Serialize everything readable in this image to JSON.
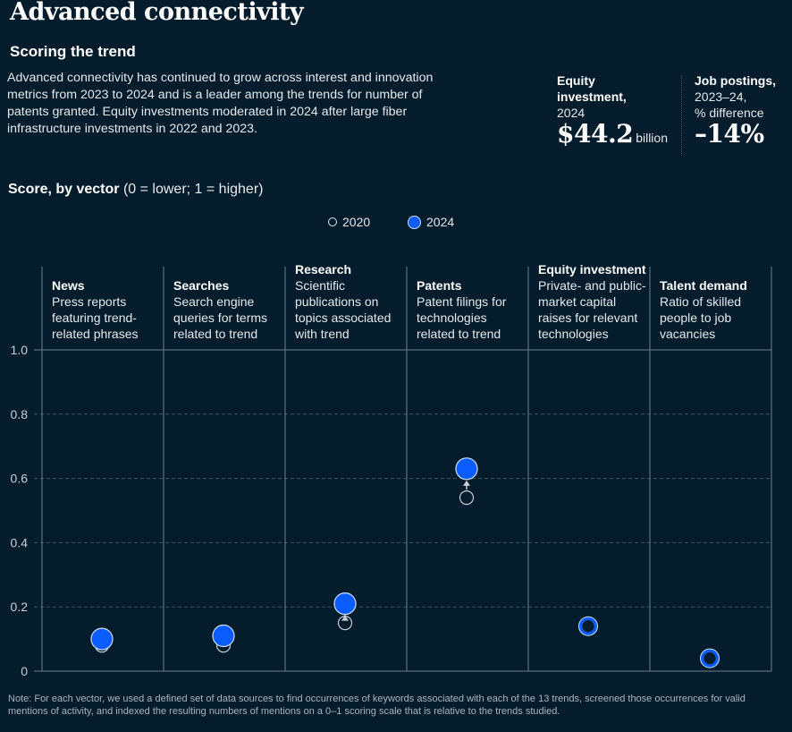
{
  "header": {
    "title": "Advanced connectivity",
    "subtitle": "Scoring the trend",
    "description": "Advanced connectivity has continued to grow across interest and innovation metrics from 2023 to 2024 and is a leader among the trends for number of patents granted. Equity investments moderated in 2024 after large fiber infrastructure investments in 2022 and 2023."
  },
  "kpis": {
    "equity": {
      "label_bold_1": "Equity",
      "label_bold_2": "investment,",
      "label_sub": "2024",
      "value": "$44.2",
      "unit": "billion"
    },
    "jobs": {
      "label_bold": "Job postings,",
      "label_sub_1": "2023–24,",
      "label_sub_2": "% difference",
      "value": "–14%"
    }
  },
  "score_title": {
    "bold": "Score, by vector",
    "light": " (0 = lower; 1 = higher)"
  },
  "legend": {
    "items": [
      {
        "label": "2020",
        "style": "hollow-circle"
      },
      {
        "label": "2024",
        "style": "filled-blue-circle"
      }
    ]
  },
  "colors": {
    "background": "#051c2c",
    "accent_2024": "#0a5cff",
    "marker_2020": "#c7ced4",
    "grid": "#3c5466",
    "axis": "#6e8090"
  },
  "columns": [
    {
      "title": "News",
      "desc": [
        "Press reports",
        "featuring trend-",
        "related phrases"
      ]
    },
    {
      "title": "Searches",
      "desc": [
        "Search engine",
        "queries for terms",
        "related to trend"
      ]
    },
    {
      "title": "Research",
      "desc": [
        "Scientific",
        "publications on",
        "topics associated",
        "with trend"
      ]
    },
    {
      "title": "Patents",
      "desc": [
        "Patent filings for",
        "technologies",
        "related to trend"
      ]
    },
    {
      "title": "Equity investment",
      "desc": [
        "Private- and public-",
        "market capital",
        "raises for relevant",
        "technologies"
      ]
    },
    {
      "title": "Talent demand",
      "desc": [
        "Ratio of skilled",
        "people to job",
        "vacancies"
      ]
    }
  ],
  "chart_data": {
    "type": "scatter",
    "title": "Score, by vector (0 = lower; 1 = higher)",
    "categories": [
      "News",
      "Searches",
      "Research",
      "Patents",
      "Equity investment",
      "Talent demand"
    ],
    "series": [
      {
        "name": "2020",
        "values": [
          0.08,
          0.08,
          0.15,
          0.54,
          0.14,
          0.04
        ]
      },
      {
        "name": "2024",
        "values": [
          0.1,
          0.11,
          0.21,
          0.63,
          0.14,
          0.04
        ]
      }
    ],
    "ylim": [
      0,
      1
    ],
    "yticks": [
      0,
      0.2,
      0.4,
      0.6,
      0.8,
      1.0
    ],
    "ytick_labels": [
      "0",
      "0.2",
      "0.4",
      "0.6",
      "0.8",
      "1.0"
    ],
    "grid": true,
    "legend_position": "top-center",
    "annotations": [
      "arrow from 2020 to 2024 on Patents"
    ]
  },
  "note": "Note: For each vector, we used a defined set of data sources to find occurrences of keywords associated with each of the 13 trends, screened those occurrences for valid mentions of activity, and indexed the resulting numbers of mentions on a 0–1 scoring scale that is relative to the trends studied."
}
